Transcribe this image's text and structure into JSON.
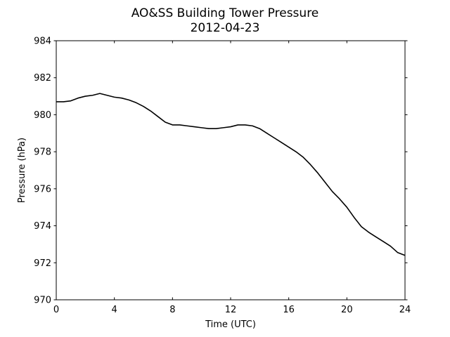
{
  "chart_data": {
    "type": "line",
    "title": "AO&SS Building Tower Pressure",
    "subtitle": "2012-04-23",
    "xlabel": "Time (UTC)",
    "ylabel": "Pressure (hPa)",
    "xlim": [
      0,
      24
    ],
    "ylim": [
      970,
      984
    ],
    "xticks": [
      0,
      4,
      8,
      12,
      16,
      20,
      24
    ],
    "yticks": [
      970,
      972,
      974,
      976,
      978,
      980,
      982,
      984
    ],
    "grid": false,
    "line_color": "#000000",
    "series": [
      {
        "x": [
          0,
          0.5,
          1,
          1.5,
          2,
          2.5,
          3,
          3.5,
          4,
          4.5,
          5,
          5.5,
          6,
          6.5,
          7,
          7.5,
          8,
          8.5,
          9,
          9.5,
          10,
          10.5,
          11,
          11.5,
          12,
          12.5,
          13,
          13.5,
          14,
          14.5,
          15,
          15.5,
          16,
          16.5,
          17,
          17.5,
          18,
          18.5,
          19,
          19.5,
          20,
          20.5,
          21,
          21.5,
          22,
          22.5,
          23,
          23.5,
          24
        ],
        "y": [
          980.7,
          980.7,
          980.75,
          980.9,
          981.0,
          981.05,
          981.15,
          981.05,
          980.95,
          980.9,
          980.8,
          980.65,
          980.45,
          980.2,
          979.9,
          979.6,
          979.45,
          979.45,
          979.4,
          979.35,
          979.3,
          979.25,
          979.25,
          979.3,
          979.35,
          979.45,
          979.45,
          979.4,
          979.25,
          979.0,
          978.75,
          978.5,
          978.25,
          978.0,
          977.7,
          977.3,
          976.85,
          976.35,
          975.85,
          975.45,
          975.0,
          974.45,
          973.95,
          973.65,
          973.4,
          973.15,
          972.9,
          972.55,
          972.4
        ]
      }
    ]
  }
}
